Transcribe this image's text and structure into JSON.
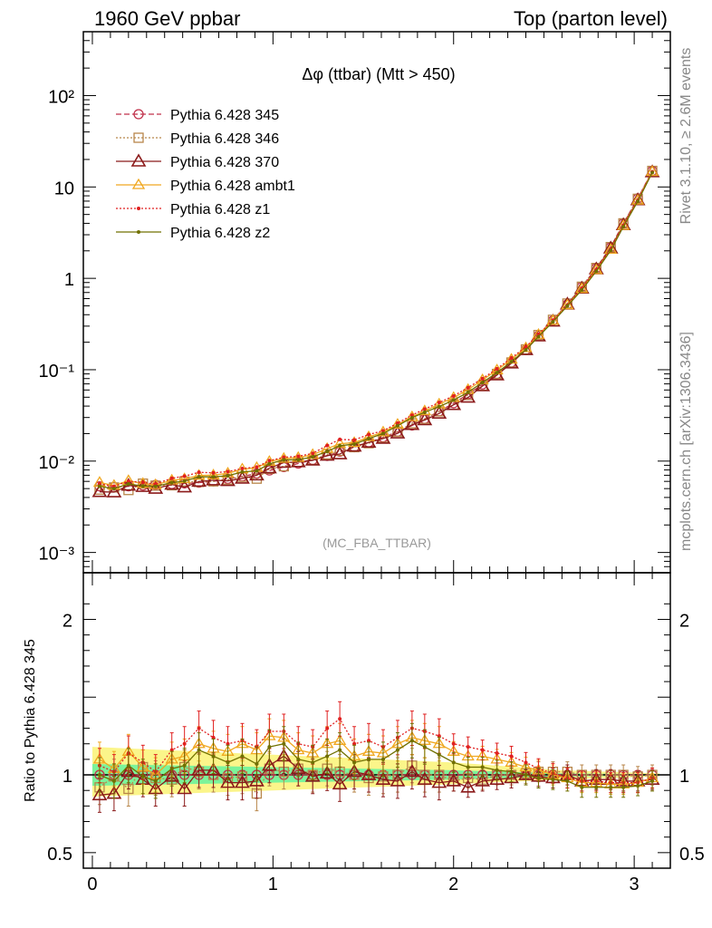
{
  "header": {
    "left": "1960 GeV ppbar",
    "right": "Top (parton level)"
  },
  "side_labels": {
    "rivet": "Rivet 3.1.10, ≥ 2.6M events",
    "mcplots": "mcplots.cern.ch [arXiv:1306.3436]"
  },
  "chart_data": [
    {
      "type": "line",
      "title": "Δφ (ttbar) (Mtt > 450)",
      "watermark": "(MC_FBA_TTBAR)",
      "yscale": "log",
      "xlim": [
        -0.05,
        3.2
      ],
      "ylim": [
        0.0006,
        500
      ],
      "y_tick_labels": [
        "10⁻³",
        "10⁻²",
        "10⁻¹",
        "1",
        "10",
        "10²"
      ],
      "y_tick_values": [
        0.001,
        0.01,
        0.1,
        1,
        10,
        100
      ],
      "legend_position": "top-left",
      "x": [
        0.04,
        0.12,
        0.2,
        0.28,
        0.35,
        0.44,
        0.51,
        0.59,
        0.67,
        0.75,
        0.83,
        0.91,
        0.98,
        1.06,
        1.14,
        1.22,
        1.3,
        1.37,
        1.45,
        1.53,
        1.61,
        1.69,
        1.77,
        1.84,
        1.92,
        2.0,
        2.08,
        2.16,
        2.24,
        2.32,
        2.4,
        2.47,
        2.55,
        2.63,
        2.71,
        2.79,
        2.87,
        2.94,
        3.02,
        3.1
      ],
      "reference": [
        0.0053,
        0.0052,
        0.0053,
        0.0054,
        0.0055,
        0.0056,
        0.0057,
        0.0058,
        0.006,
        0.0064,
        0.0068,
        0.0073,
        0.0079,
        0.0086,
        0.0094,
        0.0103,
        0.0114,
        0.0127,
        0.0142,
        0.016,
        0.0182,
        0.021,
        0.0245,
        0.029,
        0.035,
        0.043,
        0.054,
        0.069,
        0.09,
        0.12,
        0.165,
        0.235,
        0.345,
        0.52,
        0.81,
        1.3,
        2.2,
        4.0,
        7.5,
        15.0
      ],
      "series": [
        {
          "name": "Pythia 6.428 345",
          "color": "#c0304a",
          "marker": "circle",
          "dash": "6,3",
          "ratio": [
            1.0,
            1.0,
            1.0,
            1.0,
            1.0,
            1.0,
            1.0,
            1.0,
            1.0,
            1.0,
            1.0,
            1.0,
            1.0,
            1.0,
            1.0,
            1.0,
            1.0,
            1.0,
            1.0,
            1.0,
            1.0,
            1.0,
            1.0,
            1.0,
            1.0,
            1.0,
            1.0,
            1.0,
            1.0,
            1.0,
            1.0,
            1.0,
            1.0,
            1.0,
            1.0,
            1.0,
            1.0,
            1.0,
            1.0,
            1.0
          ]
        },
        {
          "name": "Pythia 6.428 346",
          "color": "#b8864a",
          "marker": "square",
          "dash": "2,2",
          "ratio": [
            0.92,
            0.99,
            0.91,
            1.05,
            0.98,
            0.97,
            1.05,
            1.02,
            1.0,
            0.98,
            0.99,
            0.88,
            1.04,
            1.02,
            1.04,
            1.0,
            1.04,
            1.02,
            1.0,
            0.98,
            0.99,
            1.0,
            1.06,
            1.0,
            1.0,
            0.96,
            0.98,
            0.97,
            1.0,
            1.0,
            1.01,
            1.02,
            1.02,
            1.02,
            1.0,
            1.0,
            1.0,
            1.0,
            0.99,
            1.0
          ]
        },
        {
          "name": "Pythia 6.428 370",
          "color": "#8b1a1a",
          "marker": "triangle",
          "dash": "",
          "ratio": [
            0.87,
            0.88,
            1.02,
            0.97,
            0.91,
            0.99,
            0.91,
            1.03,
            1.03,
            0.95,
            0.95,
            0.96,
            1.06,
            1.12,
            1.04,
            0.99,
            1.01,
            0.94,
            1.02,
            1.0,
            0.97,
            0.96,
            1.02,
            0.97,
            0.95,
            0.96,
            0.92,
            0.96,
            0.97,
            0.98,
            1.0,
            0.99,
            0.98,
            1.0,
            0.96,
            0.97,
            0.97,
            0.96,
            0.96,
            0.97
          ]
        },
        {
          "name": "Pythia 6.428 ambt1",
          "color": "#f0a820",
          "marker": "triangle-open",
          "dash": "",
          "ratio": [
            1.1,
            1.04,
            1.15,
            1.05,
            1.0,
            1.1,
            1.12,
            1.2,
            1.17,
            1.15,
            1.2,
            1.16,
            1.25,
            1.24,
            1.16,
            1.14,
            1.2,
            1.22,
            1.12,
            1.15,
            1.14,
            1.2,
            1.24,
            1.22,
            1.2,
            1.15,
            1.12,
            1.12,
            1.1,
            1.08,
            1.05,
            1.03,
            1.0,
            0.98,
            0.95,
            0.95,
            0.94,
            0.94,
            0.95,
            0.98
          ]
        },
        {
          "name": "Pythia 6.428 z1",
          "color": "#e02020",
          "marker": "dot",
          "dash": "2,2",
          "ratio": [
            1.06,
            1.02,
            1.14,
            1.08,
            1.02,
            1.16,
            1.2,
            1.3,
            1.24,
            1.2,
            1.22,
            1.18,
            1.28,
            1.28,
            1.2,
            1.18,
            1.3,
            1.36,
            1.2,
            1.22,
            1.18,
            1.24,
            1.3,
            1.28,
            1.25,
            1.2,
            1.18,
            1.16,
            1.14,
            1.12,
            1.08,
            1.04,
            1.01,
            0.98,
            0.96,
            0.96,
            0.95,
            0.95,
            0.95,
            0.98
          ]
        },
        {
          "name": "Pythia 6.428 z2",
          "color": "#707000",
          "marker": "dot",
          "dash": "",
          "ratio": [
            1.0,
            0.96,
            1.06,
            0.99,
            0.96,
            1.04,
            1.06,
            1.16,
            1.12,
            1.08,
            1.12,
            1.07,
            1.18,
            1.2,
            1.1,
            1.08,
            1.12,
            1.16,
            1.08,
            1.1,
            1.1,
            1.16,
            1.22,
            1.18,
            1.13,
            1.08,
            1.05,
            1.05,
            1.03,
            1.02,
            1.0,
            0.98,
            0.97,
            0.96,
            0.92,
            0.92,
            0.92,
            0.92,
            0.93,
            0.96
          ]
        }
      ]
    },
    {
      "type": "line",
      "ylabel": "Ratio to Pythia 6.428 345",
      "ylim": [
        0.4,
        2.3
      ],
      "xlim": [
        -0.05,
        3.2
      ],
      "x_ticks": [
        0,
        1,
        2,
        3
      ],
      "y_ticks": [
        0.5,
        1,
        2
      ],
      "reference_band": {
        "inner_color": "#7cf39a",
        "outer_color": "#fbf58a"
      }
    }
  ]
}
